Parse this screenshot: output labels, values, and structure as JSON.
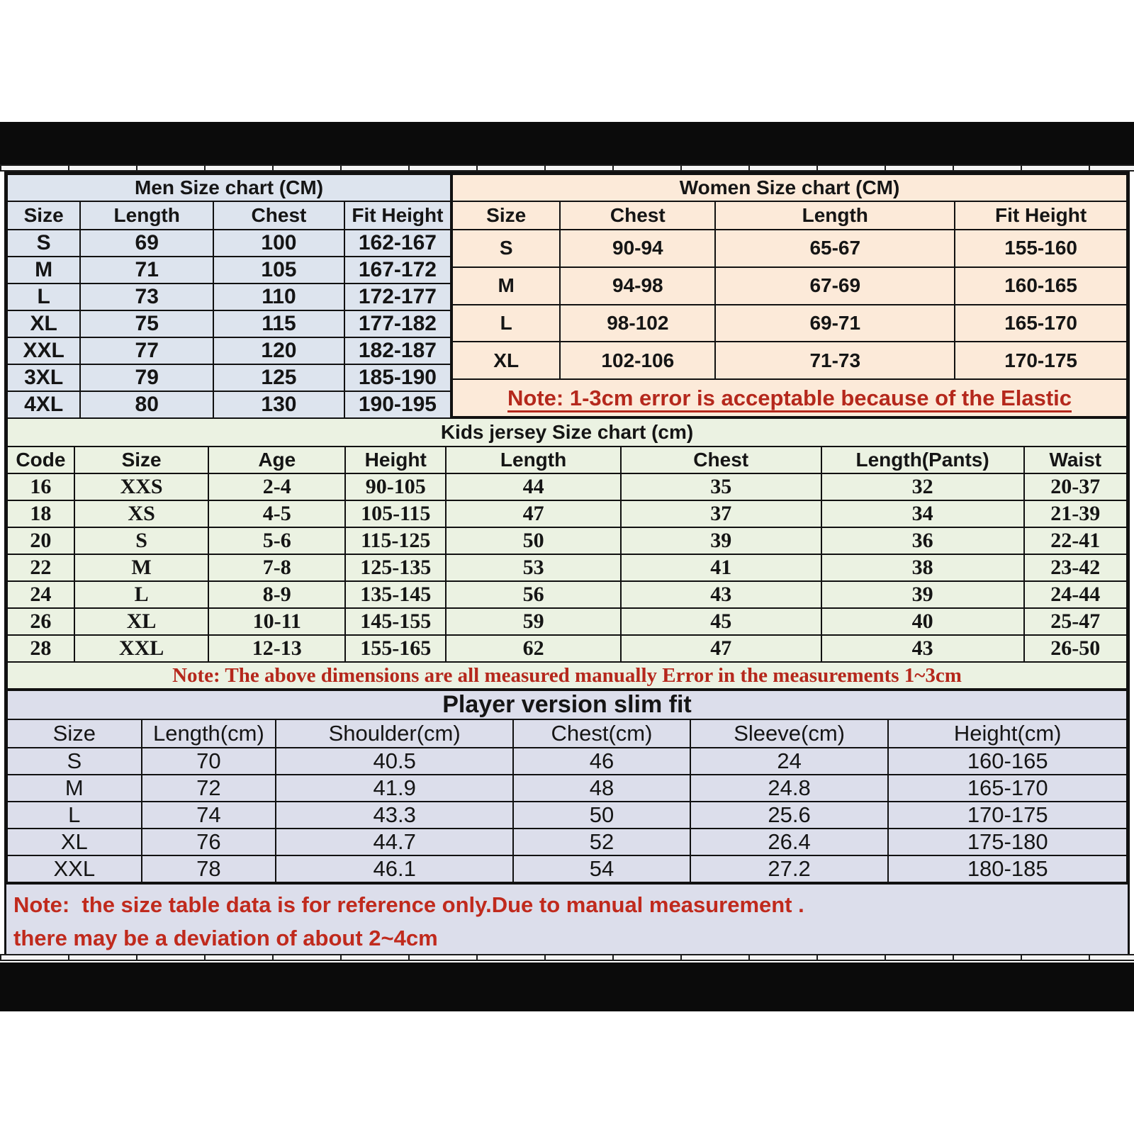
{
  "men": {
    "title": "Men Size chart (CM)",
    "headers": [
      "Size",
      "Length",
      "Chest",
      "Fit Height"
    ],
    "rows": [
      [
        "S",
        "69",
        "100",
        "162-167"
      ],
      [
        "M",
        "71",
        "105",
        "167-172"
      ],
      [
        "L",
        "73",
        "110",
        "172-177"
      ],
      [
        "XL",
        "75",
        "115",
        "177-182"
      ],
      [
        "XXL",
        "77",
        "120",
        "182-187"
      ],
      [
        "3XL",
        "79",
        "125",
        "185-190"
      ],
      [
        "4XL",
        "80",
        "130",
        "190-195"
      ]
    ]
  },
  "women": {
    "title": "Women Size chart (CM)",
    "headers": [
      "Size",
      "Chest",
      "Length",
      "Fit Height"
    ],
    "rows": [
      [
        "S",
        "90-94",
        "65-67",
        "155-160"
      ],
      [
        "M",
        "94-98",
        "67-69",
        "160-165"
      ],
      [
        "L",
        "98-102",
        "69-71",
        "165-170"
      ],
      [
        "XL",
        "102-106",
        "71-73",
        "170-175"
      ]
    ],
    "note": "Note: 1-3cm error is acceptable because of the Elastic"
  },
  "kids": {
    "title": "Kids jersey Size chart (cm)",
    "headers": [
      "Code",
      "Size",
      "Age",
      "Height",
      "Length",
      "Chest",
      "Length(Pants)",
      "Waist"
    ],
    "rows": [
      [
        "16",
        "XXS",
        "2-4",
        "90-105",
        "44",
        "35",
        "32",
        "20-37"
      ],
      [
        "18",
        "XS",
        "4-5",
        "105-115",
        "47",
        "37",
        "34",
        "21-39"
      ],
      [
        "20",
        "S",
        "5-6",
        "115-125",
        "50",
        "39",
        "36",
        "22-41"
      ],
      [
        "22",
        "M",
        "7-8",
        "125-135",
        "53",
        "41",
        "38",
        "23-42"
      ],
      [
        "24",
        "L",
        "8-9",
        "135-145",
        "56",
        "43",
        "39",
        "24-44"
      ],
      [
        "26",
        "XL",
        "10-11",
        "145-155",
        "59",
        "45",
        "40",
        "25-47"
      ],
      [
        "28",
        "XXL",
        "12-13",
        "155-165",
        "62",
        "47",
        "43",
        "26-50"
      ]
    ],
    "note": "Note: The above dimensions are all measured manually Error in the measurements 1~3cm"
  },
  "player": {
    "title": "Player version slim fit",
    "headers": [
      "Size",
      "Length(cm)",
      "Shoulder(cm)",
      "Chest(cm)",
      "Sleeve(cm)",
      "Height(cm)"
    ],
    "rows": [
      [
        "S",
        "70",
        "40.5",
        "46",
        "24",
        "160-165"
      ],
      [
        "M",
        "72",
        "41.9",
        "48",
        "24.8",
        "165-170"
      ],
      [
        "L",
        "74",
        "43.3",
        "50",
        "25.6",
        "170-175"
      ],
      [
        "XL",
        "76",
        "44.7",
        "52",
        "26.4",
        "175-180"
      ],
      [
        "XXL",
        "78",
        "46.1",
        "54",
        "27.2",
        "180-185"
      ]
    ]
  },
  "bottom_note": {
    "line1": "Note:  the size table data is for reference only.Due to manual measurement .",
    "line2": "there may be a deviation of about 2~4cm"
  },
  "colors": {
    "men_bg": "#dde4ee",
    "women_bg": "#fcead9",
    "kids_bg": "#ebf2e2",
    "player_bg": "#dcdeeb",
    "note_red": "#b5281c",
    "bar_black": "#0b0b0b"
  }
}
